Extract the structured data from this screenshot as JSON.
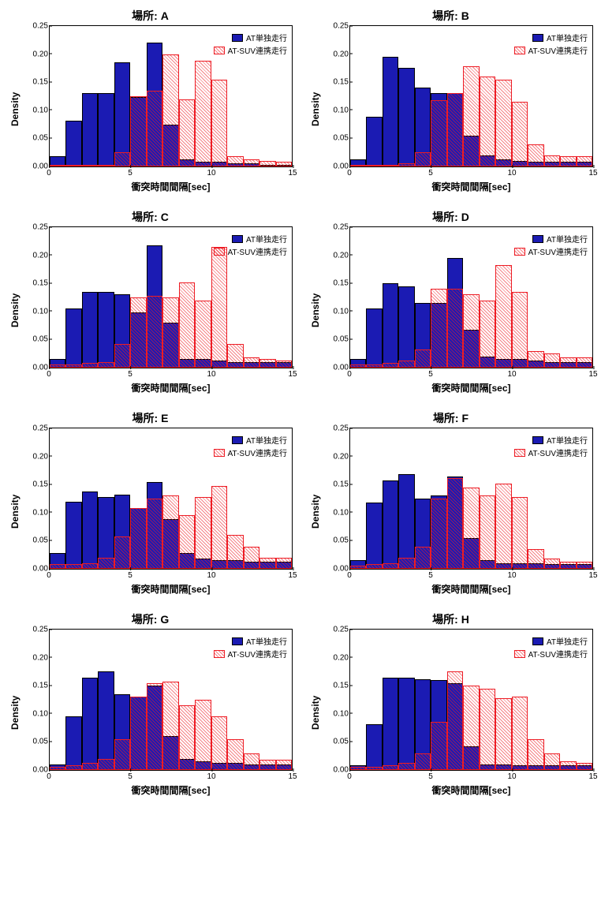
{
  "global": {
    "ylabel": "Density",
    "xlabel": "衝突時間間隔[sec]",
    "title_prefix": "場所: ",
    "xlim": [
      0,
      15
    ],
    "ylim": [
      0,
      0.25
    ],
    "yticks": [
      0.0,
      0.05,
      0.1,
      0.15,
      0.2,
      0.25
    ],
    "xticks": [
      0,
      5,
      10,
      15
    ],
    "bin_width": 1.0,
    "colors": {
      "series1_fill": "#1b1bb3",
      "series1_border": "#000000",
      "series2_border": "#ed1c24",
      "series2_hatch": "#ed1c24",
      "background": "#ffffff",
      "axis": "#000000",
      "text": "#000000"
    },
    "legend": {
      "series1": "AT単独走行",
      "series2": "AT-SUV連携走行"
    },
    "title_fontsize": 14,
    "label_fontsize": 12,
    "tick_fontsize": 10
  },
  "panels": [
    {
      "id": "A",
      "series1": [
        0.018,
        0.082,
        0.13,
        0.13,
        0.185,
        0.123,
        0.22,
        0.075,
        0.012,
        0.008,
        0.008,
        0.005,
        0.005,
        0.003,
        0.003
      ],
      "series2": [
        0.0,
        0.0,
        0.003,
        0.003,
        0.025,
        0.125,
        0.135,
        0.2,
        0.12,
        0.188,
        0.155,
        0.018,
        0.012,
        0.01,
        0.008
      ]
    },
    {
      "id": "B",
      "series1": [
        0.012,
        0.088,
        0.195,
        0.175,
        0.14,
        0.13,
        0.13,
        0.055,
        0.02,
        0.012,
        0.01,
        0.008,
        0.008,
        0.008,
        0.008
      ],
      "series2": [
        0.003,
        0.003,
        0.003,
        0.005,
        0.025,
        0.118,
        0.13,
        0.178,
        0.16,
        0.155,
        0.115,
        0.04,
        0.02,
        0.018,
        0.018
      ]
    },
    {
      "id": "C",
      "series1": [
        0.015,
        0.105,
        0.135,
        0.135,
        0.13,
        0.098,
        0.218,
        0.08,
        0.015,
        0.015,
        0.012,
        0.01,
        0.01,
        0.01,
        0.01
      ],
      "series2": [
        0.005,
        0.005,
        0.008,
        0.01,
        0.042,
        0.125,
        0.128,
        0.125,
        0.152,
        0.12,
        0.215,
        0.042,
        0.018,
        0.015,
        0.012
      ]
    },
    {
      "id": "D",
      "series1": [
        0.015,
        0.105,
        0.15,
        0.145,
        0.115,
        0.115,
        0.195,
        0.068,
        0.02,
        0.015,
        0.015,
        0.012,
        0.01,
        0.01,
        0.01
      ],
      "series2": [
        0.005,
        0.005,
        0.008,
        0.012,
        0.032,
        0.14,
        0.14,
        0.13,
        0.12,
        0.182,
        0.135,
        0.03,
        0.025,
        0.018,
        0.018
      ]
    },
    {
      "id": "E",
      "series1": [
        0.028,
        0.12,
        0.138,
        0.128,
        0.132,
        0.108,
        0.155,
        0.088,
        0.028,
        0.018,
        0.015,
        0.015,
        0.012,
        0.012,
        0.012
      ],
      "series2": [
        0.008,
        0.008,
        0.01,
        0.02,
        0.058,
        0.108,
        0.125,
        0.13,
        0.095,
        0.128,
        0.148,
        0.06,
        0.04,
        0.02,
        0.02
      ]
    },
    {
      "id": "F",
      "series1": [
        0.015,
        0.118,
        0.158,
        0.168,
        0.125,
        0.13,
        0.165,
        0.055,
        0.015,
        0.01,
        0.01,
        0.01,
        0.008,
        0.008,
        0.008
      ],
      "series2": [
        0.005,
        0.008,
        0.01,
        0.02,
        0.04,
        0.125,
        0.162,
        0.145,
        0.13,
        0.152,
        0.128,
        0.035,
        0.018,
        0.012,
        0.012
      ]
    },
    {
      "id": "G",
      "series1": [
        0.01,
        0.095,
        0.165,
        0.175,
        0.135,
        0.13,
        0.15,
        0.06,
        0.02,
        0.015,
        0.012,
        0.012,
        0.01,
        0.01,
        0.01
      ],
      "series2": [
        0.005,
        0.008,
        0.012,
        0.02,
        0.055,
        0.13,
        0.155,
        0.158,
        0.115,
        0.125,
        0.095,
        0.055,
        0.03,
        0.018,
        0.018
      ]
    },
    {
      "id": "H",
      "series1": [
        0.008,
        0.082,
        0.165,
        0.165,
        0.162,
        0.16,
        0.155,
        0.042,
        0.01,
        0.01,
        0.008,
        0.008,
        0.008,
        0.008,
        0.008
      ],
      "series2": [
        0.005,
        0.005,
        0.008,
        0.012,
        0.03,
        0.085,
        0.175,
        0.15,
        0.145,
        0.128,
        0.13,
        0.055,
        0.03,
        0.015,
        0.012
      ]
    }
  ]
}
